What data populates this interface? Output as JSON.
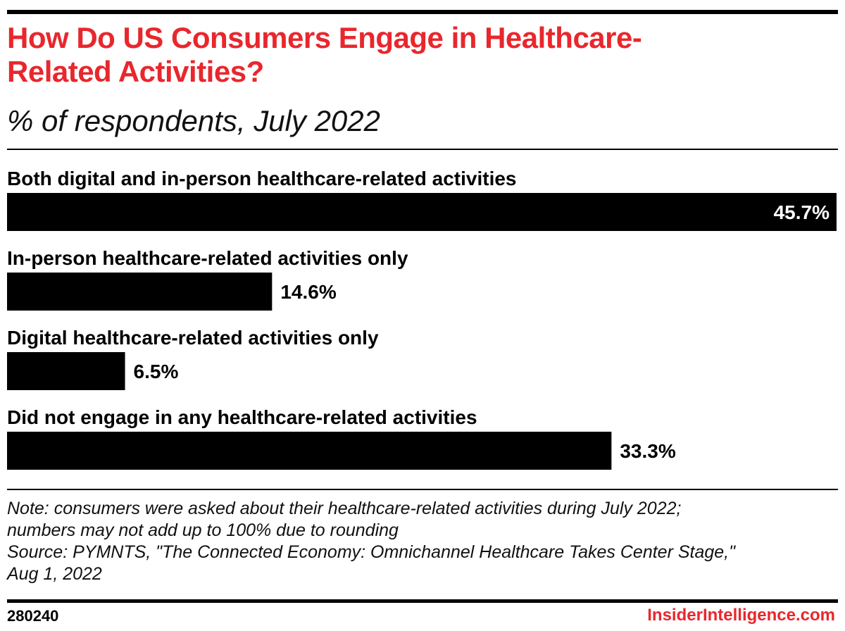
{
  "header": {
    "title": "How Do US Consumers Engage in Healthcare-Related Activities?",
    "subtitle": "% of respondents, July 2022"
  },
  "chart_data": {
    "type": "bar",
    "orientation": "horizontal",
    "title": "How Do US Consumers Engage in Healthcare-Related Activities?",
    "subtitle": "% of respondents, July 2022",
    "categories": [
      "Both digital and in-person healthcare-related activities",
      "In-person healthcare-related activities only",
      "Digital healthcare-related activities only",
      "Did not engage in any healthcare-related activities"
    ],
    "values": [
      45.7,
      14.6,
      6.5,
      33.3
    ],
    "value_labels": [
      "45.7%",
      "14.6%",
      "6.5%",
      "33.3%"
    ],
    "unit": "%",
    "xlim": [
      0,
      45.7
    ],
    "bar_color": "#000000",
    "grid": false,
    "legend": "none"
  },
  "footer": {
    "note_line1": "Note: consumers were asked about their healthcare-related activities during July 2022;",
    "note_line2": "numbers may not add up to 100% due to rounding",
    "source_line1": "Source: PYMNTS, \"The Connected Economy: Omnichannel Healthcare Takes Center Stage,\"",
    "source_line2": "Aug 1, 2022",
    "chart_id": "280240",
    "brand": "InsiderIntelligence.com"
  },
  "colors": {
    "accent": "#e8272d",
    "text": "#000000",
    "background": "#ffffff"
  }
}
